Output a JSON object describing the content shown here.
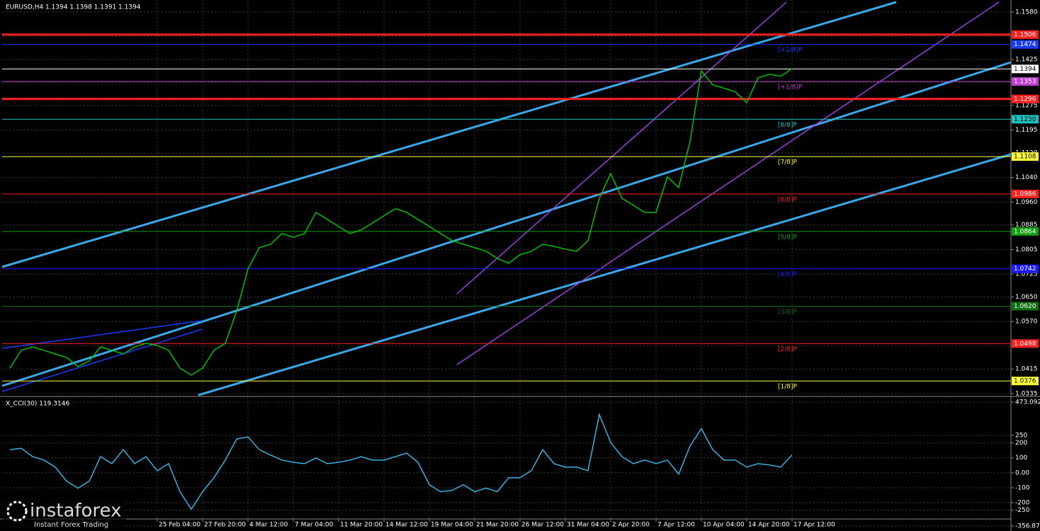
{
  "chart_data": [
    {
      "type": "line",
      "title": "EURUSD,H4  1.1394 1.1398 1.1391 1.1394",
      "color": "#00c000",
      "categories": [
        null,
        null,
        null,
        null,
        null,
        null,
        null,
        null,
        null,
        null,
        null,
        null,
        null,
        "25 Feb 04:00",
        null,
        null,
        null,
        "27 Feb 20:00",
        null,
        null,
        null,
        "4 Mar 12:00",
        null,
        null,
        null,
        "7 Mar 04:00",
        null,
        null,
        null,
        "11 Mar 20:00",
        null,
        null,
        null,
        "14 Mar 12:00",
        null,
        null,
        null,
        "19 Mar 04:00",
        null,
        null,
        null,
        "21 Mar 20:00",
        null,
        null,
        null,
        "26 Mar 12:00",
        null,
        null,
        null,
        "31 Mar 04:00",
        null,
        null,
        null,
        "2 Apr 20:00",
        null,
        null,
        null,
        "7 Apr 12:00",
        null,
        null,
        null,
        "10 Apr 04:00",
        null,
        null,
        null,
        "14 Apr 20:00",
        null,
        null,
        null,
        "17 Apr 12:00"
      ],
      "values": [
        1.0418,
        1.0476,
        1.0487,
        1.0476,
        1.0464,
        1.0453,
        1.0423,
        1.0441,
        1.0487,
        1.0476,
        1.0464,
        1.0487,
        1.0499,
        1.0492,
        1.0476,
        1.0418,
        1.0395,
        1.0418,
        1.0476,
        1.0499,
        1.0603,
        1.0741,
        1.0811,
        1.0822,
        1.0857,
        1.0845,
        1.0857,
        1.0926,
        1.0903,
        1.088,
        1.0857,
        1.0869,
        1.0892,
        1.0915,
        1.0938,
        1.0926,
        1.0903,
        1.088,
        1.0857,
        1.0834,
        1.0822,
        1.0811,
        1.0799,
        1.0776,
        1.076,
        1.0788,
        1.0799,
        1.0822,
        1.0815,
        1.0806,
        1.0799,
        1.0834,
        1.0972,
        1.1053,
        1.0972,
        1.0949,
        1.0926,
        1.0926,
        1.1042,
        1.1007,
        1.1157,
        1.1388,
        1.1342,
        1.1331,
        1.1319,
        1.1284,
        1.1365,
        1.1377,
        1.137,
        1.1395
      ],
      "ylim": [
        1.033,
        1.1612
      ],
      "yticks": [
        {
          "value": 1.158,
          "label": "1.1580"
        },
        {
          "value": 1.15,
          "label": "1.1500"
        },
        1.1425,
        {
          "value": 1.135,
          "label": "1.1350"
        },
        1.1275,
        1.1195,
        {
          "value": 1.112,
          "label": "1.1120"
        },
        {
          "value": 1.104,
          "label": "1.1040"
        },
        {
          "value": 1.096,
          "label": "1.0960"
        },
        1.0885,
        1.0805,
        1.0725,
        {
          "value": 1.065,
          "label": "1.0650"
        },
        {
          "value": 1.057,
          "label": "1.0570"
        },
        {
          "value": 1.049,
          "label": "1.0490"
        },
        1.0415,
        1.0335
      ],
      "grid": true,
      "levels": [
        {
          "value": 1.1506,
          "color": "#ff2020",
          "style": "thick"
        },
        {
          "value": 1.1474,
          "color": "#1a3cff",
          "murray": "[+2/8]P"
        },
        {
          "value": 1.1394,
          "color": "#ffffff"
        },
        {
          "value": 1.1353,
          "color": "#c040d0",
          "murray": "[+1/8]P"
        },
        {
          "value": 1.1296,
          "color": "#ff2020",
          "style": "thick"
        },
        {
          "value": 1.123,
          "label": "1.1230",
          "color": "#20c0c0",
          "murray": "[8/8]P"
        },
        {
          "value": 1.1108,
          "color": "#ffff40",
          "murray": "[7/8]P"
        },
        {
          "value": 1.0986,
          "color": "#ff2020",
          "murray": "[6/8]P"
        },
        {
          "value": 1.0864,
          "color": "#10a010",
          "murray": "[5/8]P"
        },
        {
          "value": 1.0742,
          "color": "#1a1aff",
          "murray": "[4/8]P"
        },
        {
          "value": 1.062,
          "label": "1.0620",
          "color": "#107010",
          "murray": "[3/8]P"
        },
        {
          "value": 1.0498,
          "color": "#ff2020",
          "murray": "[2/8]P"
        },
        {
          "value": 1.0376,
          "color": "#ffff40",
          "murray": "[1/8]P"
        }
      ]
    },
    {
      "type": "line",
      "title": "X_CCI(30) 119.3146",
      "color": "#3ab0e0",
      "values": [
        155,
        164,
        108,
        85,
        38,
        -56,
        -103,
        -56,
        108,
        61,
        155,
        61,
        108,
        14,
        61,
        -127,
        -244,
        -127,
        -33,
        85,
        226,
        240,
        155,
        118,
        85,
        70,
        61,
        99,
        61,
        70,
        85,
        108,
        85,
        85,
        108,
        132,
        70,
        -80,
        -127,
        -118,
        -80,
        -127,
        -103,
        -127,
        -33,
        -33,
        14,
        155,
        61,
        38,
        38,
        14,
        390,
        202,
        108,
        61,
        85,
        61,
        85,
        -9,
        179,
        296,
        155,
        85,
        85,
        38,
        61,
        52,
        38,
        119.3146
      ],
      "ylim": [
        -356.879,
        473.0924
      ],
      "yticks": [
        473.0924,
        250,
        200,
        100,
        {
          "value": 0,
          "label": "0.00"
        },
        -100,
        -200,
        -250,
        -356.879
      ],
      "grid": true
    }
  ]
}
